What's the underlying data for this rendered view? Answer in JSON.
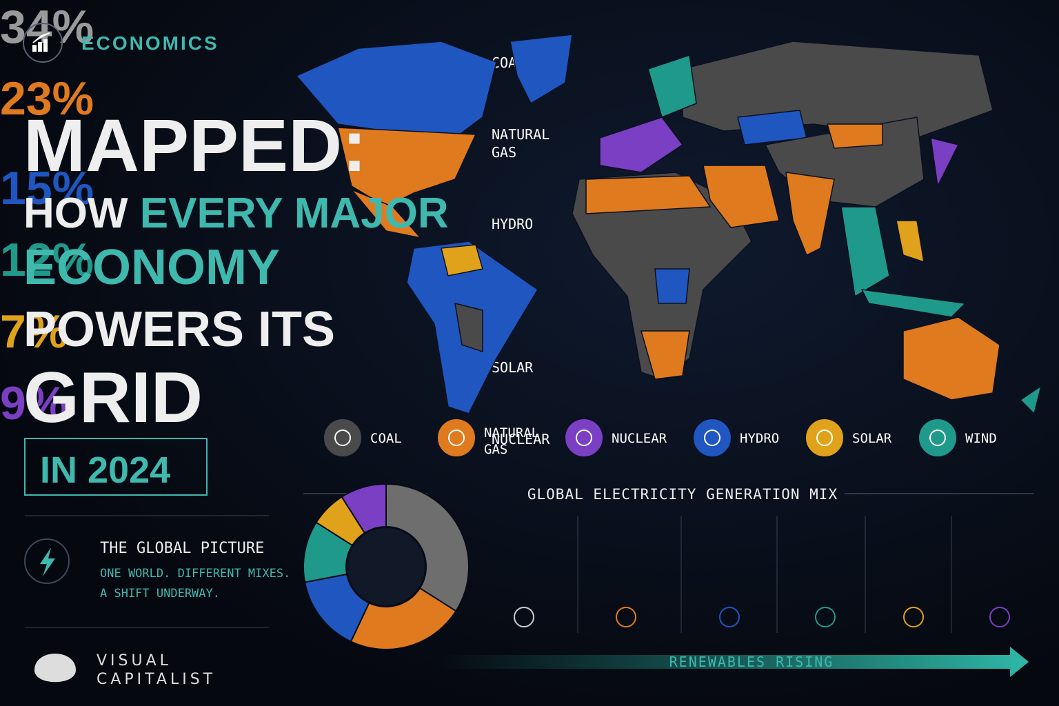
{
  "header": {
    "category": "ECONOMICS",
    "title_main": "MAPPED:",
    "title_1a": "HOW",
    "title_1b": "EVERY MAJOR",
    "title_2": "ECONOMY",
    "title_3": "POWERS ITS",
    "title_4": "GRID",
    "year_badge": "IN 2024"
  },
  "sidebar": {
    "heading": "THE GLOBAL PICTURE",
    "line1": "ONE WORLD. DIFFERENT MIXES.",
    "line2": "A SHIFT UNDERWAY."
  },
  "brand": {
    "line1": "VISUAL",
    "line2": "CAPITALIST"
  },
  "map_legend": [
    {
      "label": "COAL",
      "color": "#4a4a4a"
    },
    {
      "label": "NATURAL GAS",
      "color": "#e07a1f"
    },
    {
      "label": "NUCLEAR",
      "color": "#7b3fc4"
    },
    {
      "label": "HYDRO",
      "color": "#1f56c0"
    },
    {
      "label": "SOLAR",
      "color": "#e0a21a"
    },
    {
      "label": "WIND",
      "color": "#1f9a8a"
    }
  ],
  "chart_data": {
    "type": "pie",
    "donut": true,
    "title": "GLOBAL ELECTRICITY GENERATION MIX",
    "categories": [
      "COAL",
      "NATURAL GAS",
      "HYDRO",
      "WIND",
      "SOLAR",
      "NUCLEAR"
    ],
    "values": [
      34,
      23,
      15,
      12,
      7,
      9
    ],
    "value_labels": [
      "34%",
      "23%",
      "15%",
      "12%",
      "7%",
      "9%"
    ],
    "colors": [
      "#6e6e6e",
      "#e07a1f",
      "#1f56c0",
      "#1f9a8a",
      "#e0a21a",
      "#7b3fc4"
    ]
  },
  "footer": {
    "arrow_label": "RENEWABLES RISING"
  }
}
